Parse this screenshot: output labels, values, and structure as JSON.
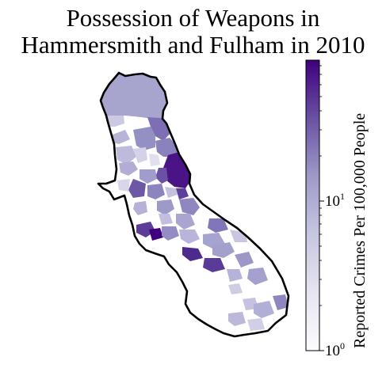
{
  "title": {
    "line1": "Possession of Weapons in",
    "line2": "Hammersmith and Fulham in 2010"
  },
  "colorbar": {
    "label": "Reported Crimes Per 100,000 People",
    "scale": "log",
    "colormap": "Purples",
    "color_low": "#fcfbfd",
    "color_high": "#3f007d",
    "ticks": [
      {
        "base": "10",
        "exp": "1",
        "value": 10
      },
      {
        "base": "10",
        "exp": "0",
        "value": 1
      }
    ]
  },
  "map": {
    "borough": "Hammersmith and Fulham",
    "boundary_color": "#000000",
    "no_data_color": "#ffffff"
  }
}
